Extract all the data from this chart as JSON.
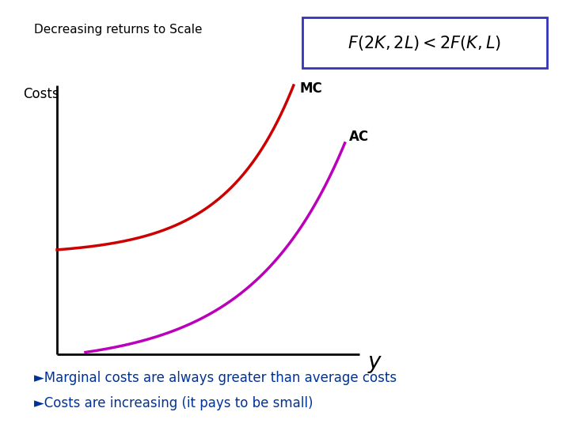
{
  "title": "Decreasing returns to Scale",
  "title_fontsize": 11,
  "title_color": "#000000",
  "ylabel": "Costs",
  "ylabel_fontsize": 12,
  "xlabel_italic": "y",
  "xlabel_fontsize": 20,
  "formula_fontsize": 15,
  "mc_color": "#cc0000",
  "ac_color": "#bb00bb",
  "mc_label": "MC",
  "ac_label": "AC",
  "label_fontsize": 12,
  "bullet_color": "#003399",
  "bullet1": "Marginal costs are always greater than average costs",
  "bullet2": "Costs are increasing (it pays to be small)",
  "bullet_fontsize": 12,
  "background_color": "#ffffff",
  "box_edge_color": "#3333bb",
  "axis_color": "#000000",
  "axis_lw": 2.0
}
